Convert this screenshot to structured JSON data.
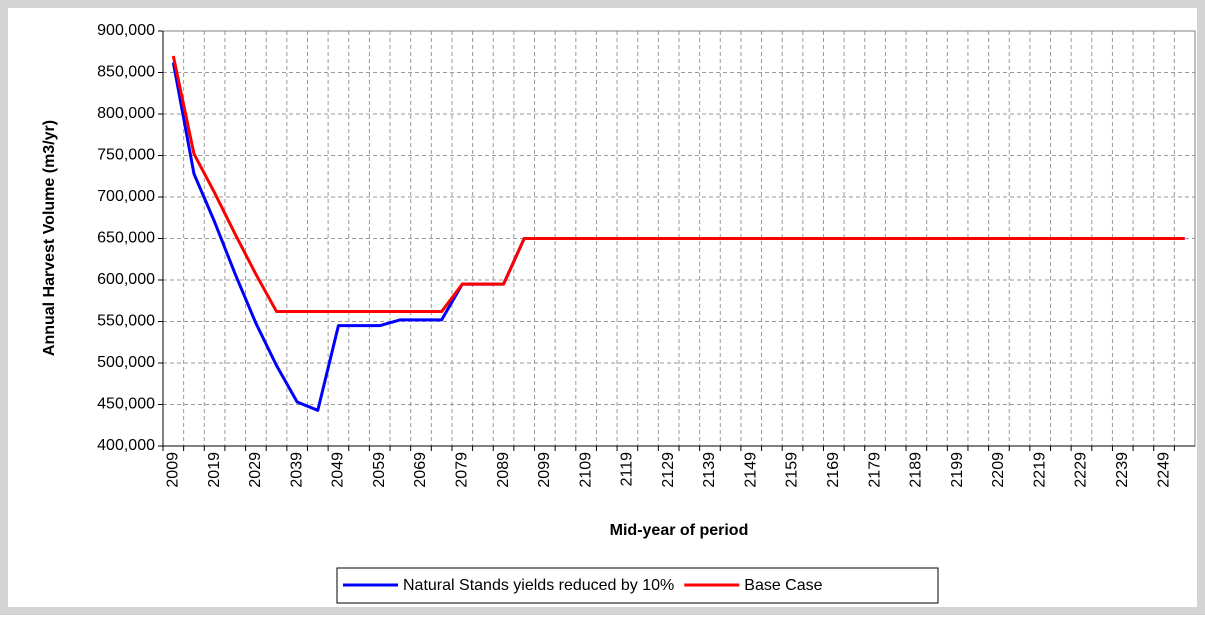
{
  "chart_data": {
    "type": "line",
    "y_label": "Annual Harvest Volume (m3/yr)",
    "x_label": "Mid-year of period",
    "categories": [
      "2009",
      null,
      "2019",
      null,
      "2029",
      null,
      "2039",
      null,
      "2049",
      null,
      "2059",
      null,
      "2069",
      null,
      "2079",
      null,
      "2089",
      null,
      "2099",
      null,
      "2109",
      null,
      "2119",
      null,
      "2129",
      null,
      "2139",
      null,
      "2149",
      null,
      "2159",
      null,
      "2169",
      null,
      "2179",
      null,
      "2189",
      null,
      "2199",
      null,
      "2209",
      null,
      "2219",
      null,
      "2229",
      null,
      "2239",
      null,
      "2249",
      null
    ],
    "series": [
      {
        "name": "Natural Stands yields reduced by 10%",
        "color": "#0000ff",
        "values": [
          862000,
          728000,
          670000,
          607000,
          548000,
          497000,
          453000,
          443000,
          545000,
          545000,
          545000,
          552000,
          552000,
          552000,
          595000,
          595000,
          595000,
          650000,
          650000,
          650000,
          650000,
          650000,
          650000,
          650000,
          650000,
          650000,
          650000,
          650000,
          650000,
          650000,
          650000,
          650000,
          650000,
          650000,
          650000,
          650000,
          650000,
          650000,
          650000,
          650000,
          650000,
          650000,
          650000,
          650000,
          650000,
          650000,
          650000,
          650000,
          650000,
          650000
        ]
      },
      {
        "name": "Base Case",
        "color": "#ff0000",
        "values": [
          870000,
          752000,
          705000,
          655000,
          607000,
          562000,
          562000,
          562000,
          562000,
          562000,
          562000,
          562000,
          562000,
          562000,
          595000,
          595000,
          595000,
          650000,
          650000,
          650000,
          650000,
          650000,
          650000,
          650000,
          650000,
          650000,
          650000,
          650000,
          650000,
          650000,
          650000,
          650000,
          650000,
          650000,
          650000,
          650000,
          650000,
          650000,
          650000,
          650000,
          650000,
          650000,
          650000,
          650000,
          650000,
          650000,
          650000,
          650000,
          650000,
          650000
        ]
      }
    ],
    "ylim": [
      400000,
      900000
    ],
    "yticks": [
      {
        "value": 400000,
        "label": "400,000"
      },
      {
        "value": 450000,
        "label": "450,000"
      },
      {
        "value": 500000,
        "label": "500,000"
      },
      {
        "value": 550000,
        "label": "550,000"
      },
      {
        "value": 600000,
        "label": "600,000"
      },
      {
        "value": 650000,
        "label": "650,000"
      },
      {
        "value": 700000,
        "label": "700,000"
      },
      {
        "value": 750000,
        "label": "750,000"
      },
      {
        "value": 800000,
        "label": "800,000"
      },
      {
        "value": 850000,
        "label": "850,000"
      },
      {
        "value": 900000,
        "label": "900,000"
      }
    ],
    "grid": true,
    "legend": "bottom"
  }
}
